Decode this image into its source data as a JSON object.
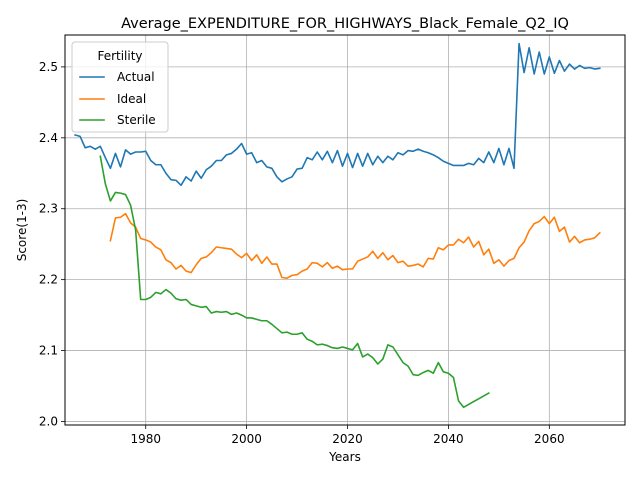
{
  "chart_data": {
    "type": "line",
    "title": "Average_EXPENDITURE_FOR_HIGHWAYS_Black_Female_Q2_IQ",
    "xlabel": "Years",
    "ylabel": "Score(1-3)",
    "xlim": [
      1964,
      2075
    ],
    "ylim": [
      1.995,
      2.545
    ],
    "xticks": [
      1980,
      2000,
      2020,
      2040,
      2060
    ],
    "yticks": [
      2.0,
      2.1,
      2.2,
      2.3,
      2.4,
      2.5
    ],
    "ytick_labels": [
      "2.0",
      "2.1",
      "2.2",
      "2.3",
      "2.4",
      "2.5"
    ],
    "grid": true,
    "legend": {
      "title": "Fertility",
      "placement": "top-left"
    },
    "series": [
      {
        "name": "Actual",
        "color": "#1f77b4",
        "points": [
          [
            1966,
            2.404
          ],
          [
            1967,
            2.402
          ],
          [
            1968,
            2.386
          ],
          [
            1969,
            2.388
          ],
          [
            1970,
            2.384
          ],
          [
            1971,
            2.388
          ],
          [
            1972,
            2.372
          ],
          [
            1973,
            2.357
          ],
          [
            1974,
            2.378
          ],
          [
            1975,
            2.359
          ],
          [
            1976,
            2.383
          ],
          [
            1977,
            2.377
          ],
          [
            1978,
            2.38
          ],
          [
            1979,
            2.38
          ],
          [
            1980,
            2.381
          ],
          [
            1981,
            2.368
          ],
          [
            1982,
            2.362
          ],
          [
            1983,
            2.362
          ],
          [
            1984,
            2.35
          ],
          [
            1985,
            2.341
          ],
          [
            1986,
            2.34
          ],
          [
            1987,
            2.333
          ],
          [
            1988,
            2.345
          ],
          [
            1989,
            2.339
          ],
          [
            1990,
            2.353
          ],
          [
            1991,
            2.343
          ],
          [
            1992,
            2.355
          ],
          [
            1993,
            2.36
          ],
          [
            1994,
            2.368
          ],
          [
            1995,
            2.368
          ],
          [
            1996,
            2.376
          ],
          [
            1997,
            2.378
          ],
          [
            1998,
            2.384
          ],
          [
            1999,
            2.392
          ],
          [
            2000,
            2.377
          ],
          [
            2001,
            2.379
          ],
          [
            2002,
            2.365
          ],
          [
            2003,
            2.368
          ],
          [
            2004,
            2.359
          ],
          [
            2005,
            2.357
          ],
          [
            2006,
            2.345
          ],
          [
            2007,
            2.338
          ],
          [
            2008,
            2.342
          ],
          [
            2009,
            2.345
          ],
          [
            2010,
            2.356
          ],
          [
            2011,
            2.357
          ],
          [
            2012,
            2.372
          ],
          [
            2013,
            2.369
          ],
          [
            2014,
            2.38
          ],
          [
            2015,
            2.369
          ],
          [
            2016,
            2.381
          ],
          [
            2017,
            2.365
          ],
          [
            2018,
            2.382
          ],
          [
            2019,
            2.36
          ],
          [
            2020,
            2.378
          ],
          [
            2021,
            2.358
          ],
          [
            2022,
            2.378
          ],
          [
            2023,
            2.36
          ],
          [
            2024,
            2.378
          ],
          [
            2025,
            2.362
          ],
          [
            2026,
            2.374
          ],
          [
            2027,
            2.365
          ],
          [
            2028,
            2.374
          ],
          [
            2029,
            2.369
          ],
          [
            2030,
            2.379
          ],
          [
            2031,
            2.376
          ],
          [
            2032,
            2.382
          ],
          [
            2033,
            2.381
          ],
          [
            2034,
            2.384
          ],
          [
            2035,
            2.381
          ],
          [
            2036,
            2.379
          ],
          [
            2037,
            2.376
          ],
          [
            2038,
            2.372
          ],
          [
            2039,
            2.367
          ],
          [
            2040,
            2.364
          ],
          [
            2041,
            2.361
          ],
          [
            2042,
            2.361
          ],
          [
            2043,
            2.361
          ],
          [
            2044,
            2.364
          ],
          [
            2045,
            2.362
          ],
          [
            2046,
            2.371
          ],
          [
            2047,
            2.365
          ],
          [
            2048,
            2.38
          ],
          [
            2049,
            2.365
          ],
          [
            2050,
            2.385
          ],
          [
            2051,
            2.362
          ],
          [
            2052,
            2.385
          ],
          [
            2053,
            2.357
          ],
          [
            2054,
            2.533
          ],
          [
            2055,
            2.492
          ],
          [
            2056,
            2.527
          ],
          [
            2057,
            2.49
          ],
          [
            2058,
            2.521
          ],
          [
            2059,
            2.49
          ],
          [
            2060,
            2.514
          ],
          [
            2061,
            2.491
          ],
          [
            2062,
            2.509
          ],
          [
            2063,
            2.494
          ],
          [
            2064,
            2.504
          ],
          [
            2065,
            2.497
          ],
          [
            2066,
            2.502
          ],
          [
            2067,
            2.498
          ],
          [
            2068,
            2.499
          ],
          [
            2069,
            2.497
          ],
          [
            2070,
            2.498
          ]
        ]
      },
      {
        "name": "Ideal",
        "color": "#ff7f0e",
        "points": [
          [
            1973,
            2.255
          ],
          [
            1974,
            2.287
          ],
          [
            1975,
            2.288
          ],
          [
            1976,
            2.293
          ],
          [
            1977,
            2.28
          ],
          [
            1978,
            2.274
          ],
          [
            1979,
            2.258
          ],
          [
            1980,
            2.256
          ],
          [
            1981,
            2.253
          ],
          [
            1982,
            2.246
          ],
          [
            1983,
            2.242
          ],
          [
            1984,
            2.228
          ],
          [
            1985,
            2.224
          ],
          [
            1986,
            2.215
          ],
          [
            1987,
            2.22
          ],
          [
            1988,
            2.212
          ],
          [
            1989,
            2.21
          ],
          [
            1990,
            2.221
          ],
          [
            1991,
            2.23
          ],
          [
            1992,
            2.232
          ],
          [
            1993,
            2.238
          ],
          [
            1994,
            2.246
          ],
          [
            1995,
            2.245
          ],
          [
            1996,
            2.244
          ],
          [
            1997,
            2.243
          ],
          [
            1998,
            2.236
          ],
          [
            1999,
            2.231
          ],
          [
            2000,
            2.237
          ],
          [
            2001,
            2.227
          ],
          [
            2002,
            2.235
          ],
          [
            2003,
            2.223
          ],
          [
            2004,
            2.232
          ],
          [
            2005,
            2.222
          ],
          [
            2006,
            2.222
          ],
          [
            2007,
            2.203
          ],
          [
            2008,
            2.202
          ],
          [
            2009,
            2.206
          ],
          [
            2010,
            2.207
          ],
          [
            2011,
            2.212
          ],
          [
            2012,
            2.215
          ],
          [
            2013,
            2.224
          ],
          [
            2014,
            2.223
          ],
          [
            2015,
            2.218
          ],
          [
            2016,
            2.224
          ],
          [
            2017,
            2.216
          ],
          [
            2018,
            2.219
          ],
          [
            2019,
            2.214
          ],
          [
            2020,
            2.215
          ],
          [
            2021,
            2.215
          ],
          [
            2022,
            2.226
          ],
          [
            2023,
            2.229
          ],
          [
            2024,
            2.232
          ],
          [
            2025,
            2.24
          ],
          [
            2026,
            2.23
          ],
          [
            2027,
            2.238
          ],
          [
            2028,
            2.228
          ],
          [
            2029,
            2.234
          ],
          [
            2030,
            2.224
          ],
          [
            2031,
            2.226
          ],
          [
            2032,
            2.219
          ],
          [
            2033,
            2.22
          ],
          [
            2034,
            2.222
          ],
          [
            2035,
            2.218
          ],
          [
            2036,
            2.23
          ],
          [
            2037,
            2.229
          ],
          [
            2038,
            2.245
          ],
          [
            2039,
            2.242
          ],
          [
            2040,
            2.249
          ],
          [
            2041,
            2.249
          ],
          [
            2042,
            2.257
          ],
          [
            2043,
            2.252
          ],
          [
            2044,
            2.26
          ],
          [
            2045,
            2.246
          ],
          [
            2046,
            2.254
          ],
          [
            2047,
            2.235
          ],
          [
            2048,
            2.243
          ],
          [
            2049,
            2.223
          ],
          [
            2050,
            2.228
          ],
          [
            2051,
            2.219
          ],
          [
            2052,
            2.227
          ],
          [
            2053,
            2.23
          ],
          [
            2054,
            2.245
          ],
          [
            2055,
            2.253
          ],
          [
            2056,
            2.269
          ],
          [
            2057,
            2.279
          ],
          [
            2058,
            2.282
          ],
          [
            2059,
            2.289
          ],
          [
            2060,
            2.279
          ],
          [
            2061,
            2.288
          ],
          [
            2062,
            2.268
          ],
          [
            2063,
            2.274
          ],
          [
            2064,
            2.253
          ],
          [
            2065,
            2.261
          ],
          [
            2066,
            2.252
          ],
          [
            2067,
            2.256
          ],
          [
            2068,
            2.257
          ],
          [
            2069,
            2.259
          ],
          [
            2070,
            2.266
          ]
        ]
      },
      {
        "name": "Sterile",
        "color": "#2ca02c",
        "points": [
          [
            1971,
            2.374
          ],
          [
            1972,
            2.335
          ],
          [
            1973,
            2.311
          ],
          [
            1974,
            2.323
          ],
          [
            1975,
            2.322
          ],
          [
            1976,
            2.32
          ],
          [
            1977,
            2.305
          ],
          [
            1978,
            2.27
          ],
          [
            1979,
            2.172
          ],
          [
            1980,
            2.172
          ],
          [
            1981,
            2.175
          ],
          [
            1982,
            2.182
          ],
          [
            1983,
            2.18
          ],
          [
            1984,
            2.186
          ],
          [
            1985,
            2.181
          ],
          [
            1986,
            2.173
          ],
          [
            1987,
            2.171
          ],
          [
            1988,
            2.172
          ],
          [
            1989,
            2.165
          ],
          [
            1990,
            2.163
          ],
          [
            1991,
            2.161
          ],
          [
            1992,
            2.162
          ],
          [
            1993,
            2.153
          ],
          [
            1994,
            2.155
          ],
          [
            1995,
            2.154
          ],
          [
            1996,
            2.155
          ],
          [
            1997,
            2.151
          ],
          [
            1998,
            2.153
          ],
          [
            1999,
            2.15
          ],
          [
            2000,
            2.146
          ],
          [
            2001,
            2.146
          ],
          [
            2002,
            2.144
          ],
          [
            2003,
            2.142
          ],
          [
            2004,
            2.142
          ],
          [
            2005,
            2.137
          ],
          [
            2006,
            2.131
          ],
          [
            2007,
            2.125
          ],
          [
            2008,
            2.126
          ],
          [
            2009,
            2.123
          ],
          [
            2010,
            2.123
          ],
          [
            2011,
            2.125
          ],
          [
            2012,
            2.116
          ],
          [
            2013,
            2.113
          ],
          [
            2014,
            2.108
          ],
          [
            2015,
            2.109
          ],
          [
            2016,
            2.107
          ],
          [
            2017,
            2.104
          ],
          [
            2018,
            2.103
          ],
          [
            2019,
            2.105
          ],
          [
            2020,
            2.103
          ],
          [
            2021,
            2.101
          ],
          [
            2022,
            2.11
          ],
          [
            2023,
            2.091
          ],
          [
            2024,
            2.095
          ],
          [
            2025,
            2.09
          ],
          [
            2026,
            2.081
          ],
          [
            2027,
            2.088
          ],
          [
            2028,
            2.108
          ],
          [
            2029,
            2.105
          ],
          [
            2030,
            2.094
          ],
          [
            2031,
            2.083
          ],
          [
            2032,
            2.078
          ],
          [
            2033,
            2.066
          ],
          [
            2034,
            2.065
          ],
          [
            2035,
            2.069
          ],
          [
            2036,
            2.072
          ],
          [
            2037,
            2.068
          ],
          [
            2038,
            2.083
          ],
          [
            2039,
            2.07
          ],
          [
            2040,
            2.068
          ],
          [
            2041,
            2.062
          ],
          [
            2042,
            2.029
          ],
          [
            2043,
            2.02
          ],
          [
            2044,
            2.024
          ],
          [
            2045,
            2.028
          ],
          [
            2046,
            2.032
          ],
          [
            2047,
            2.036
          ],
          [
            2048,
            2.04
          ]
        ]
      }
    ]
  }
}
